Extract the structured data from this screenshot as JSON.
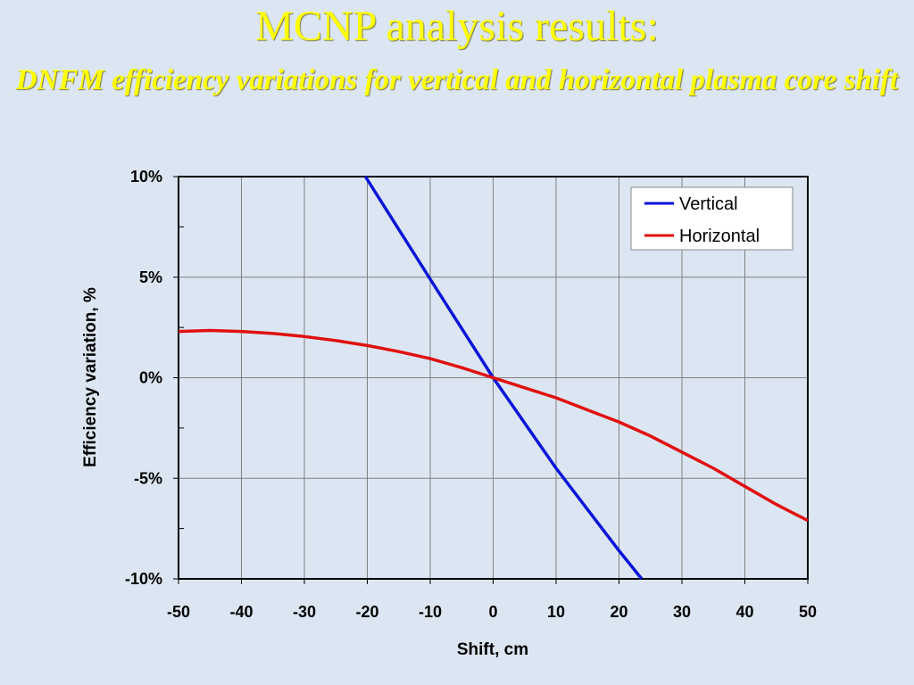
{
  "slide": {
    "title": "MCNP analysis results:",
    "subtitle": "DNFM efficiency variations for vertical and horizontal plasma core shift"
  },
  "colors": {
    "background": "#dce6f2",
    "title": "#ffff00",
    "vertical": "#0a14d8",
    "horizontal": "#e01010"
  },
  "chart_data": {
    "type": "line",
    "title": "",
    "xlabel": "Shift, cm",
    "ylabel": "Efficiency variation, %",
    "xlim": [
      -50,
      50
    ],
    "ylim": [
      -10,
      10
    ],
    "xticks": [
      -50,
      -40,
      -30,
      -20,
      -10,
      0,
      10,
      20,
      30,
      40,
      50
    ],
    "yticks": [
      10,
      5,
      0,
      -5,
      -10
    ],
    "xtick_labels": [
      "-50",
      "-40",
      "-30",
      "-20",
      "-10",
      "0",
      "10",
      "20",
      "30",
      "40",
      "50"
    ],
    "ytick_labels": [
      "10%",
      "5%",
      "0%",
      "-5%",
      "-10%"
    ],
    "grid": true,
    "legend_position": "top-right",
    "series": [
      {
        "name": "Vertical",
        "color": "#0a14d8",
        "x": [
          -20.3,
          -10,
          0,
          10,
          20,
          23.6
        ],
        "y": [
          10,
          4.9,
          0,
          -4.5,
          -8.6,
          -10
        ]
      },
      {
        "name": "Horizontal",
        "color": "#e01010",
        "x": [
          -50,
          -45,
          -40,
          -35,
          -30,
          -25,
          -20,
          -15,
          -10,
          -5,
          0,
          5,
          10,
          15,
          20,
          25,
          30,
          35,
          40,
          45,
          50
        ],
        "y": [
          2.3,
          2.35,
          2.3,
          2.2,
          2.05,
          1.85,
          1.6,
          1.3,
          0.95,
          0.5,
          0,
          -0.5,
          -1.0,
          -1.6,
          -2.2,
          -2.9,
          -3.7,
          -4.5,
          -5.4,
          -6.3,
          -7.1
        ]
      }
    ]
  }
}
